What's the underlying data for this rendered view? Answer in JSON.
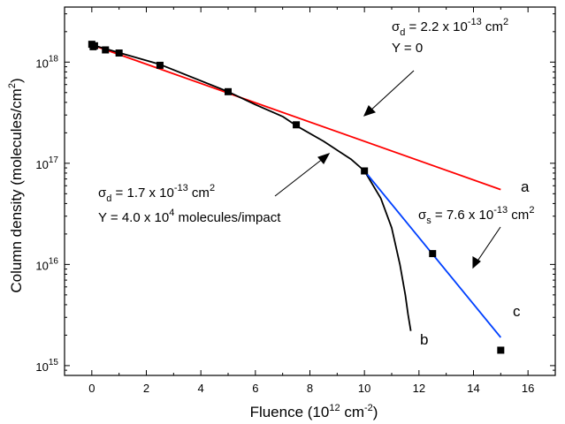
{
  "chart_data": {
    "type": "scatter",
    "xlabel": {
      "main": "Fluence (10",
      "sup": "12",
      "unit": " cm",
      "unit_sup": "-2",
      "close": ")"
    },
    "ylabel": {
      "main": "Column density (molecules/cm",
      "sup": "2",
      "close": ")"
    },
    "xlim": [
      -1,
      17
    ],
    "ylim": [
      800000000000000,
      3500000000000000000
    ],
    "yscale": "log",
    "x_ticks": [
      0,
      2,
      4,
      6,
      8,
      10,
      12,
      14,
      16
    ],
    "x_tick_labels": [
      "0",
      "2",
      "4",
      "6",
      "8",
      "10",
      "12",
      "14",
      "16"
    ],
    "y_ticks": [
      {
        "value": 1000000000000000000,
        "base": "10",
        "exp": "18"
      },
      {
        "value": 100000000000000000,
        "base": "10",
        "exp": "17"
      },
      {
        "value": 10000000000000000,
        "base": "10",
        "exp": "16"
      },
      {
        "value": 1000000000000000,
        "base": "10",
        "exp": "15"
      }
    ],
    "grid": false,
    "series": [
      {
        "kind": "points",
        "color": "#000000",
        "x": [
          0,
          0.05,
          0.1,
          0.5,
          1,
          2.5,
          5,
          7.5,
          10,
          12.5,
          15
        ],
        "y": [
          1500000000000000000,
          1420000000000000000,
          1450000000000000000,
          1320000000000000000,
          1230000000000000000,
          930000000000000000,
          510000000000000000,
          240000000000000000,
          84000000000000000,
          12800000000000000,
          1420000000000000
        ]
      },
      {
        "kind": "line",
        "label": "a",
        "color": "#ff0000",
        "x": [
          0,
          15
        ],
        "y": [
          1480000000000000000,
          55000000000000000
        ]
      },
      {
        "kind": "line",
        "label": "b",
        "color": "#000000",
        "x": [
          0,
          2.5,
          5,
          6,
          7,
          7.5,
          8.5,
          9.5,
          10,
          10.6,
          11,
          11.3,
          11.5,
          11.6,
          11.7
        ],
        "y": [
          1480000000000000000,
          950000000000000000,
          510000000000000000,
          380000000000000000,
          290000000000000000,
          235000000000000000,
          165000000000000000,
          110000000000000000,
          84000000000000000,
          45000000000000000,
          23000000000000000,
          10000000000000000,
          5000000000000000,
          3200000000000000,
          2200000000000000
        ]
      },
      {
        "kind": "line",
        "label": "c",
        "color": "#0040ff",
        "x": [
          10,
          15
        ],
        "y": [
          84000000000000000,
          1900000000000000
        ]
      }
    ],
    "annotations": [
      {
        "id": "a",
        "line1": {
          "sym": "σ",
          "sub": "d",
          "text": " = 2.2 x 10",
          "sup": "-13",
          "unit": " cm",
          "unit_sup": "2"
        },
        "line2": "Y  = 0"
      },
      {
        "id": "b",
        "line1": {
          "sym": "σ",
          "sub": "d",
          "text": " = 1.7 x 10",
          "sup": "-13",
          "unit": " cm",
          "unit_sup": "2"
        },
        "line2": {
          "text": "Y  = 4.0 x 10",
          "sup": "4",
          "rest": " molecules/impact"
        }
      },
      {
        "id": "c",
        "line1": {
          "sym": "σ",
          "sub": "s",
          "text": " = 7.6 x 10",
          "sup": "-13",
          "unit": " cm",
          "unit_sup": "2"
        }
      }
    ]
  }
}
